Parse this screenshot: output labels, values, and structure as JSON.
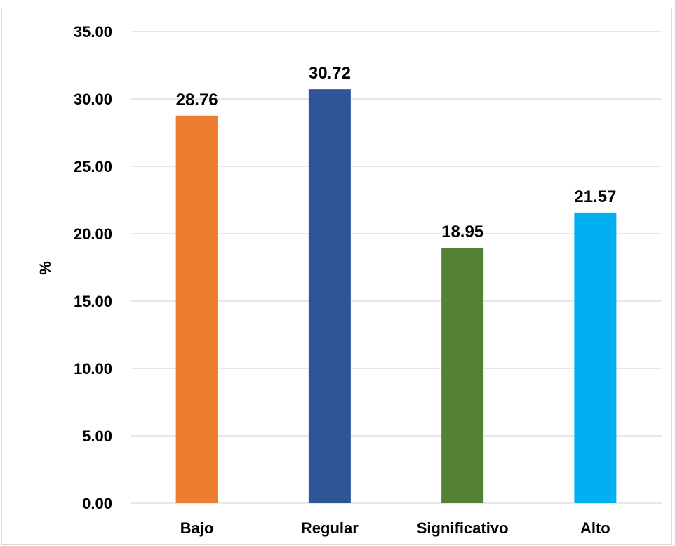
{
  "chart_data": {
    "type": "bar",
    "categories": [
      "Bajo",
      "Regular",
      "Significativo",
      "Alto"
    ],
    "values": [
      28.76,
      30.72,
      18.95,
      21.57
    ],
    "value_labels": [
      "28.76",
      "30.72",
      "18.95",
      "21.57"
    ],
    "colors": [
      "#ED7D31",
      "#2F5597",
      "#548235",
      "#00B0F0"
    ],
    "ylabel": "%",
    "ylim": [
      0,
      35
    ],
    "yticks": [
      0,
      5,
      10,
      15,
      20,
      25,
      30,
      35
    ],
    "ytick_labels": [
      "0.00",
      "5.00",
      "10.00",
      "15.00",
      "20.00",
      "25.00",
      "30.00",
      "35.00"
    ],
    "grid": true,
    "gridline_color": "#d9d9d9",
    "legend": "none"
  }
}
